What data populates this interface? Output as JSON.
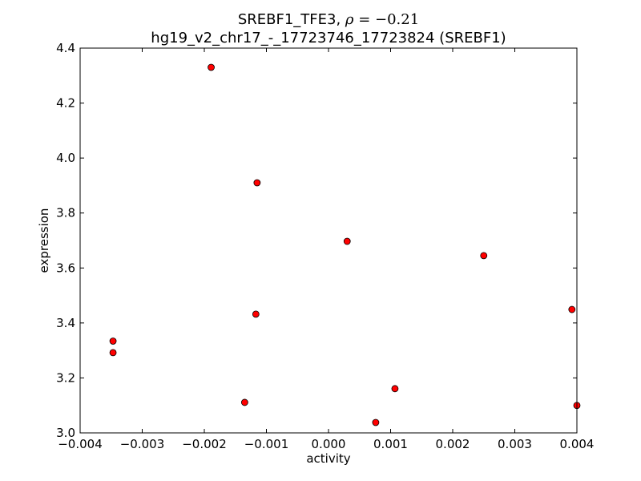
{
  "chart_data": {
    "type": "scatter",
    "title_line1_prefix": "SREBF1_TFE3, ",
    "title_rho_symbol": "ρ",
    "title_rho_value": " = −0.21",
    "title_line2": "hg19_v2_chr17_-_17723746_17723824 (SREBF1)",
    "xlabel": "activity",
    "ylabel": "expression",
    "xlim": [
      -0.004,
      0.004
    ],
    "ylim": [
      3.0,
      4.4
    ],
    "xticks": [
      -0.004,
      -0.003,
      -0.002,
      -0.001,
      0.0,
      0.001,
      0.002,
      0.003,
      0.004
    ],
    "xtick_labels": [
      "−0.004",
      "−0.003",
      "−0.002",
      "−0.001",
      "0.000",
      "0.001",
      "0.002",
      "0.003",
      "0.004"
    ],
    "yticks": [
      3.0,
      3.2,
      3.4,
      3.6,
      3.8,
      4.0,
      4.2,
      4.4
    ],
    "ytick_labels": [
      "3.0",
      "3.2",
      "3.4",
      "3.6",
      "3.8",
      "4.0",
      "4.2",
      "4.4"
    ],
    "grid": false,
    "marker_color": "#ff0000",
    "marker_edge_color": "#000000",
    "points": [
      {
        "x": -0.00189,
        "y": 4.33
      },
      {
        "x": -0.00115,
        "y": 3.91
      },
      {
        "x": 0.0003,
        "y": 3.697
      },
      {
        "x": 0.0025,
        "y": 3.645
      },
      {
        "x": -0.00117,
        "y": 3.432
      },
      {
        "x": 0.00392,
        "y": 3.449
      },
      {
        "x": -0.00347,
        "y": 3.334
      },
      {
        "x": -0.00347,
        "y": 3.292
      },
      {
        "x": -0.00135,
        "y": 3.111
      },
      {
        "x": 0.00107,
        "y": 3.161
      },
      {
        "x": 0.00076,
        "y": 3.038
      },
      {
        "x": 0.004,
        "y": 3.1
      }
    ]
  }
}
